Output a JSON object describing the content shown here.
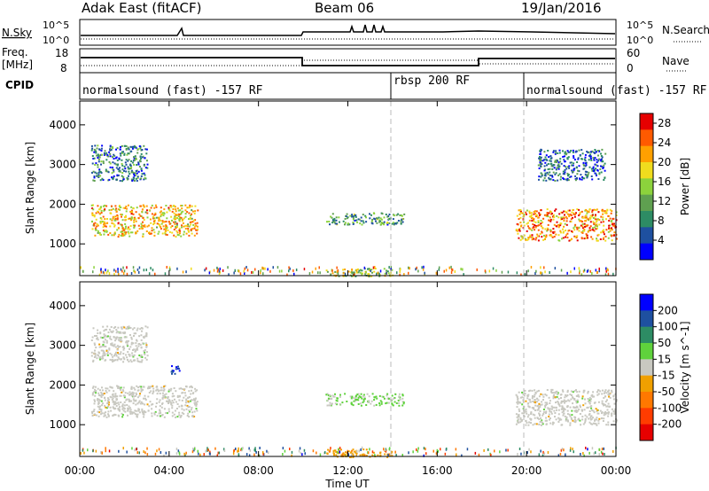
{
  "header": {
    "station": "Adak East (fitACF)",
    "beam": "Beam 06",
    "date": "19/Jan/2016"
  },
  "nsky_panel": {
    "label": "N.Sky",
    "ticks_left": [
      "10^5",
      "10^0"
    ],
    "ticks_right": [
      "10^5",
      "10^0"
    ],
    "right_label": "N.Search"
  },
  "freq_panel": {
    "label_line1": "Freq.",
    "label_line2": "[MHz]",
    "ticks_left": [
      "18",
      "8"
    ],
    "ticks_right": [
      "60",
      "0"
    ],
    "right_label": "Nave"
  },
  "cpid_panel": {
    "label": "CPID",
    "segments": [
      "normalsound (fast) -157 RF",
      "rbsp 200 RF",
      "normalsound (fast) -157 RF"
    ]
  },
  "x_axis": {
    "label": "Time UT",
    "ticks": [
      "00:00",
      "04:00",
      "08:00",
      "12:00",
      "16:00",
      "20:00",
      "00:00"
    ]
  },
  "colors": {
    "power_scale": [
      "#0000ff",
      "#1e50a0",
      "#2d8c64",
      "#5fa050",
      "#8cd23c",
      "#f0dc1e",
      "#ffa000",
      "#ff5a00",
      "#e60000"
    ],
    "velocity_scale": [
      "#0000ff",
      "#1e50a0",
      "#2d8c64",
      "#5fd23c",
      "#c8c8c0",
      "#f0a000",
      "#ff7800",
      "#ff3c00",
      "#e60000"
    ]
  },
  "chart_data": [
    {
      "type": "heatmap",
      "title": "Power",
      "ylabel": "Slant Range [km]",
      "xlabel": "",
      "yticks": [
        "1000",
        "2000",
        "3000",
        "4000"
      ],
      "ylim": [
        200,
        4600
      ],
      "xlim": [
        "00:00",
        "24:00"
      ],
      "colorbar": {
        "label": "Power [dB]",
        "ticks": [
          "4",
          "8",
          "12",
          "16",
          "20",
          "24",
          "28"
        ],
        "range": [
          0,
          30
        ]
      },
      "regions": [
        {
          "t_start": "00:30",
          "t_end": "05:15",
          "range_km": [
            1200,
            2000
          ],
          "value_dB": 20
        },
        {
          "t_start": "00:30",
          "t_end": "03:00",
          "range_km": [
            2600,
            3500
          ],
          "value_dB": 8
        },
        {
          "t_start": "11:00",
          "t_end": "14:30",
          "range_km": [
            1500,
            1800
          ],
          "value_dB": 10
        },
        {
          "t_start": "11:00",
          "t_end": "14:00",
          "range_km": [
            200,
            400
          ],
          "value_dB": 16
        },
        {
          "t_start": "19:30",
          "t_end": "24:00",
          "range_km": [
            1100,
            1900
          ],
          "value_dB": 22
        },
        {
          "t_start": "20:30",
          "t_end": "23:30",
          "range_km": [
            2600,
            3400
          ],
          "value_dB": 6
        }
      ]
    },
    {
      "type": "heatmap",
      "title": "Velocity",
      "ylabel": "Slant Range [km]",
      "xlabel": "Time UT",
      "yticks": [
        "1000",
        "2000",
        "3000",
        "4000"
      ],
      "ylim": [
        200,
        4600
      ],
      "xlim": [
        "00:00",
        "24:00"
      ],
      "colorbar": {
        "label": "Velocity [m s^-1]",
        "ticks": [
          "200",
          "100",
          "50",
          "15",
          "-15",
          "-50",
          "-100",
          "-200"
        ],
        "range": [
          -250,
          250
        ]
      },
      "regions": [
        {
          "t_start": "00:30",
          "t_end": "05:15",
          "range_km": [
            1200,
            2000
          ],
          "value_ms": 0
        },
        {
          "t_start": "00:30",
          "t_end": "03:00",
          "range_km": [
            2600,
            3500
          ],
          "value_ms": 0
        },
        {
          "t_start": "04:00",
          "t_end": "04:30",
          "range_km": [
            2300,
            2500
          ],
          "value_ms": 200
        },
        {
          "t_start": "11:00",
          "t_end": "14:30",
          "range_km": [
            1500,
            1800
          ],
          "value_ms": 40
        },
        {
          "t_start": "11:00",
          "t_end": "14:00",
          "range_km": [
            200,
            400
          ],
          "value_ms": -60
        },
        {
          "t_start": "19:30",
          "t_end": "24:00",
          "range_km": [
            1000,
            1900
          ],
          "value_ms": 0
        }
      ]
    }
  ]
}
